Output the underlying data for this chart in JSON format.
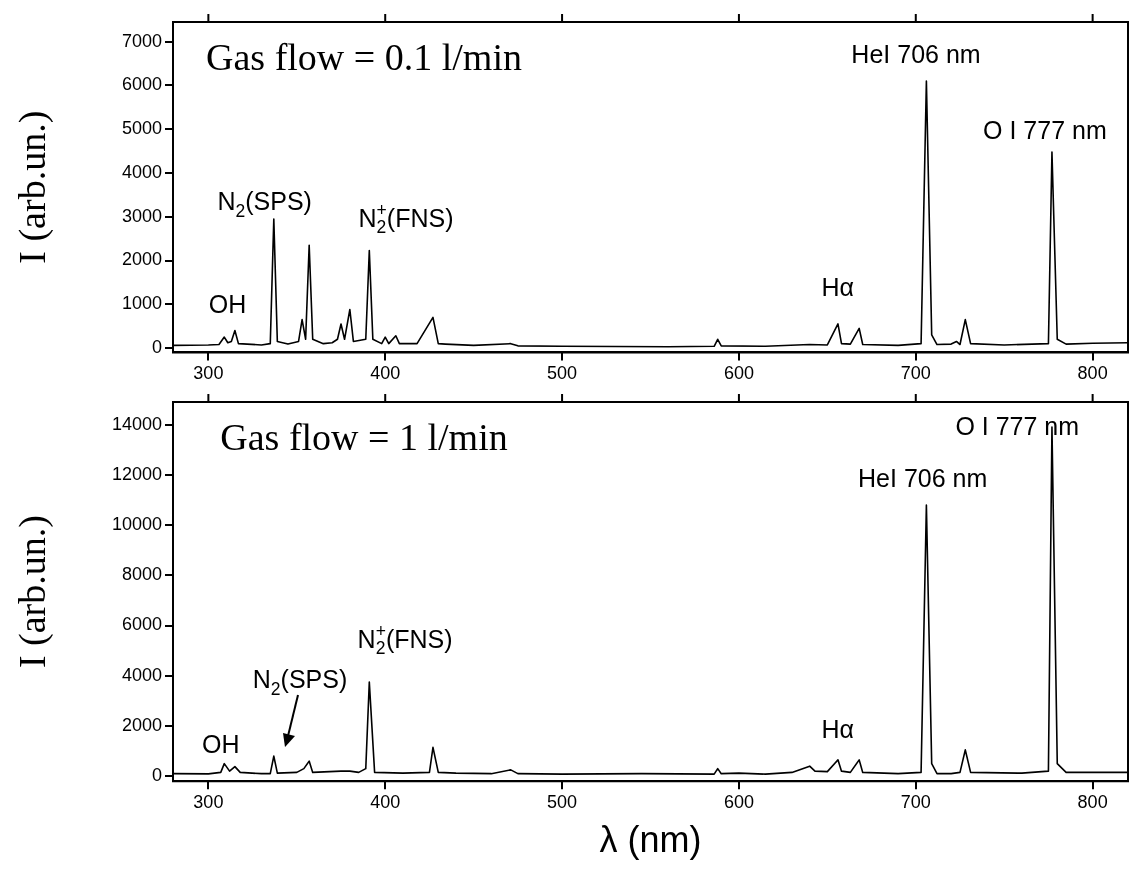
{
  "chart_data": [
    {
      "type": "line",
      "title": "Gas flow = 0.1 l/min",
      "ylabel": "I (arb.un.)",
      "xlim": [
        280,
        820
      ],
      "xticks": [
        300,
        400,
        500,
        600,
        700,
        800
      ],
      "ylim": [
        -100,
        7450
      ],
      "yticks": [
        0,
        1000,
        2000,
        3000,
        4000,
        5000,
        6000,
        7000
      ],
      "grid": false,
      "legend": false,
      "marker": "none",
      "line_style": "solid",
      "annotations": [
        "OH",
        "N$_{2}$(SPS)",
        "N$_{2}$$^{+}$(FNS)",
        "Hα",
        "HeI 706 nm",
        "O I 777 nm"
      ],
      "series": [
        {
          "color": "#000000",
          "x": [
            280,
            300,
            306,
            309,
            311,
            313,
            315,
            317,
            330,
            335,
            337,
            339,
            345,
            351,
            353,
            355,
            357,
            359,
            365,
            370,
            373,
            375,
            377,
            380,
            382,
            389,
            391,
            393,
            398,
            400,
            402,
            406,
            408,
            418,
            427,
            430,
            434,
            450,
            471,
            475,
            500,
            560,
            586,
            588,
            590,
            615,
            640,
            650,
            656,
            658,
            663,
            668,
            670,
            690,
            703,
            706,
            709,
            712,
            720,
            723,
            725,
            728,
            731,
            750,
            775,
            777,
            780,
            785,
            800,
            820
          ],
          "values": [
            60,
            70,
            80,
            250,
            120,
            150,
            400,
            100,
            70,
            100,
            2950,
            150,
            90,
            150,
            650,
            200,
            2350,
            200,
            100,
            120,
            200,
            550,
            200,
            880,
            150,
            200,
            2230,
            200,
            100,
            250,
            100,
            280,
            100,
            100,
            700,
            100,
            90,
            60,
            100,
            50,
            40,
            30,
            40,
            200,
            50,
            40,
            80,
            70,
            550,
            100,
            90,
            450,
            80,
            60,
            100,
            6100,
            300,
            80,
            90,
            150,
            80,
            650,
            100,
            70,
            100,
            4480,
            200,
            90,
            110,
            120
          ]
        }
      ]
    },
    {
      "type": "line",
      "title": "Gas flow = 1 l/min",
      "ylabel": "I (arb.un.)",
      "xlabel": "λ (nm)",
      "xlim": [
        280,
        820
      ],
      "xticks": [
        300,
        400,
        500,
        600,
        700,
        800
      ],
      "ylim": [
        -200,
        14900
      ],
      "yticks": [
        0,
        2000,
        4000,
        6000,
        8000,
        10000,
        12000,
        14000
      ],
      "grid": false,
      "legend": false,
      "marker": "none",
      "line_style": "solid",
      "annotations": [
        "OH",
        "N$_{2}$(SPS)",
        "N$_{2}$$^{+}$(FNS)",
        "Hα",
        "HeI 706 nm",
        "O I 777 nm"
      ],
      "series": [
        {
          "color": "#000000",
          "x": [
            280,
            300,
            307,
            309,
            312,
            315,
            318,
            330,
            335,
            337,
            339,
            350,
            354,
            357,
            359,
            375,
            380,
            385,
            389,
            391,
            394,
            410,
            425,
            427,
            430,
            440,
            460,
            471,
            475,
            500,
            545,
            586,
            588,
            590,
            600,
            615,
            630,
            640,
            643,
            650,
            656,
            658,
            663,
            668,
            670,
            690,
            703,
            706,
            709,
            712,
            720,
            725,
            728,
            731,
            760,
            775,
            777,
            780,
            785,
            800,
            820
          ],
          "values": [
            100,
            90,
            150,
            500,
            200,
            380,
            150,
            100,
            100,
            800,
            120,
            150,
            300,
            600,
            150,
            200,
            200,
            150,
            300,
            3750,
            150,
            120,
            150,
            1150,
            150,
            120,
            100,
            250,
            100,
            80,
            100,
            80,
            300,
            100,
            120,
            80,
            150,
            400,
            200,
            180,
            650,
            200,
            150,
            650,
            150,
            100,
            150,
            10800,
            500,
            100,
            100,
            150,
            1050,
            150,
            120,
            200,
            13900,
            500,
            150,
            150,
            150
          ]
        }
      ]
    }
  ]
}
